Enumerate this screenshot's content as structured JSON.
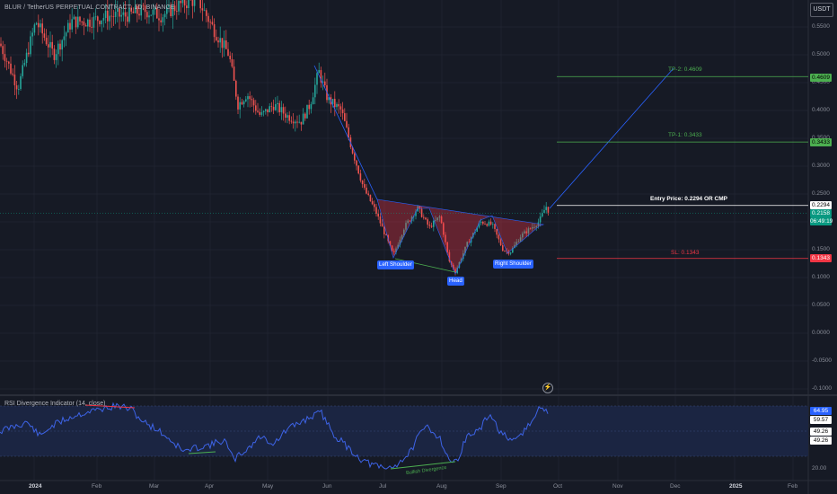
{
  "header": {
    "title": "BLUR / TetherUS PERPETUAL CONTRACT, 1D, BINANCE",
    "currency": "USDT"
  },
  "rsi_panel": {
    "title": "RSI Divergence Indicator (14, close)"
  },
  "colors": {
    "background": "#161a25",
    "up": "#26a69a",
    "down": "#ef5350",
    "trendline": "#2962ff",
    "tp": "#4caf50",
    "sl": "#f23645",
    "entry": "#ffffff",
    "rsi": "#3d63e6"
  },
  "levels": {
    "tp2": {
      "label": "TP-2: 0.4609",
      "tag": "0.4609",
      "value": 0.4609
    },
    "tp1": {
      "label": "TP-1: 0.3433",
      "tag": "0.3433",
      "value": 0.3433
    },
    "entry": {
      "label": "Entry Price: 0.2294 OR CMP",
      "tag": "0.2294",
      "value": 0.2294
    },
    "sl": {
      "label": "SL: 0.1343",
      "tag": "0.1343",
      "value": 0.1343
    },
    "current": {
      "price": "0.2158",
      "countdown": "06:49:19",
      "value": 0.2158
    }
  },
  "patterns": {
    "left_shoulder": "Left Shoulder",
    "head": "Head",
    "right_shoulder": "Right Shoulder",
    "bullish_divergence": "Bullish Divergence"
  },
  "price_axis": [
    "0.5500",
    "0.5000",
    "0.4500",
    "0.4000",
    "0.3500",
    "0.3000",
    "0.2500",
    "0.2000",
    "0.1500",
    "0.1000",
    "0.0500",
    "0.0000",
    "-0.0500",
    "-0.1000"
  ],
  "rsi_axis": {
    "values": [
      "64.95",
      "59.57",
      "49.26",
      "49.26"
    ],
    "bottom": "20.00"
  },
  "time_axis": [
    "2024",
    "Feb",
    "Mar",
    "Apr",
    "May",
    "Jun",
    "Jul",
    "Aug",
    "Sep",
    "Oct",
    "Nov",
    "Dec",
    "2025",
    "Feb"
  ],
  "chart_data": {
    "type": "candlestick",
    "title": "BLUR / TetherUS PERPETUAL CONTRACT, 1D, BINANCE",
    "ylim": [
      -0.1,
      0.56
    ],
    "key_points": [
      {
        "date": "2023-12",
        "close": 0.55
      },
      {
        "date": "2024-02",
        "close": 0.55
      },
      {
        "date": "2024-03",
        "close": 0.56
      },
      {
        "date": "2024-04",
        "close": 0.42
      },
      {
        "date": "2024-05",
        "close": 0.39
      },
      {
        "date": "2024-05-28",
        "close": 0.47
      },
      {
        "date": "2024-06",
        "close": 0.38
      },
      {
        "date": "2024-07-05",
        "close": 0.14
      },
      {
        "date": "2024-07-15",
        "close": 0.225
      },
      {
        "date": "2024-08-05",
        "close": 0.11
      },
      {
        "date": "2024-08-25",
        "close": 0.2
      },
      {
        "date": "2024-09-05",
        "close": 0.15
      },
      {
        "date": "2024-09-22",
        "close": 0.2158
      }
    ],
    "rsi_series": {
      "name": "RSI",
      "last": 64.95,
      "ylim": [
        20,
        80
      ]
    }
  }
}
